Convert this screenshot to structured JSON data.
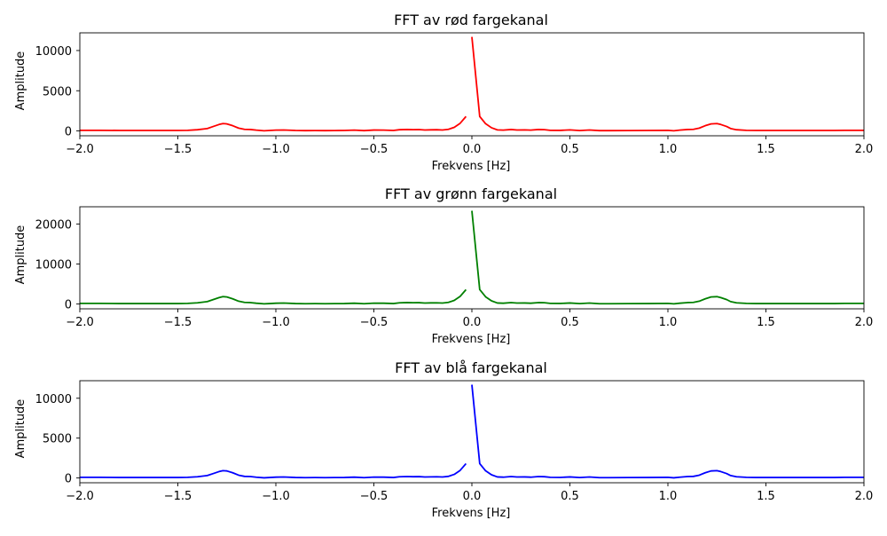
{
  "chart_data": [
    {
      "type": "line",
      "title": "FFT av rød fargekanal",
      "xlabel": "Frekvens [Hz]",
      "ylabel": "Amplitude",
      "xlim": [
        -2.0,
        2.0
      ],
      "ylim": [
        -600,
        12200
      ],
      "xticks": [
        "-2.0",
        "-1.5",
        "-1.0",
        "-0.5",
        "0.0",
        "0.5",
        "1.0",
        "1.5",
        "2.0"
      ],
      "xtick_values": [
        -2.0,
        -1.5,
        -1.0,
        -0.5,
        0.0,
        0.5,
        1.0,
        1.5,
        2.0
      ],
      "yticks": [
        "0",
        "5000",
        "10000"
      ],
      "ytick_values": [
        0,
        5000,
        10000
      ],
      "color": "#ff0000",
      "series": [
        {
          "segments": [
            {
              "x": [
                -2.0,
                -1.9,
                -1.8,
                -1.7,
                -1.6,
                -1.5,
                -1.45,
                -1.4,
                -1.35,
                -1.32,
                -1.29,
                -1.27,
                -1.25,
                -1.22,
                -1.19,
                -1.16,
                -1.13,
                -1.1,
                -1.06,
                -1.03,
                -1.0,
                -0.96,
                -0.9,
                -0.85,
                -0.8,
                -0.75,
                -0.7,
                -0.65,
                -0.6,
                -0.55,
                -0.5,
                -0.45,
                -0.4,
                -0.37,
                -0.33,
                -0.3,
                -0.27,
                -0.24,
                -0.21,
                -0.18,
                -0.15,
                -0.12,
                -0.09,
                -0.06,
                -0.03
              ],
              "y": [
                80,
                80,
                60,
                60,
                60,
                60,
                80,
                150,
                300,
                550,
                800,
                920,
                880,
                650,
                350,
                200,
                180,
                100,
                20,
                60,
                100,
                120,
                60,
                40,
                50,
                40,
                50,
                60,
                100,
                40,
                110,
                100,
                60,
                150,
                180,
                160,
                170,
                120,
                140,
                150,
                120,
                200,
                450,
                950,
                1800
              ]
            },
            {
              "x": [
                0.0,
                0.04,
                0.07,
                0.1,
                0.13,
                0.16,
                0.2,
                0.23,
                0.27,
                0.3,
                0.34,
                0.37,
                0.4,
                0.45,
                0.5,
                0.55,
                0.6,
                0.65,
                0.7,
                0.8,
                0.9,
                1.0,
                1.03,
                1.06,
                1.1,
                1.13,
                1.16,
                1.19,
                1.22,
                1.25,
                1.27,
                1.3,
                1.32,
                1.35,
                1.4,
                1.45,
                1.5,
                1.6,
                1.7,
                1.8,
                1.85,
                1.9,
                2.0
              ],
              "y": [
                11700,
                1800,
                900,
                400,
                130,
                100,
                180,
                120,
                130,
                100,
                180,
                160,
                80,
                70,
                130,
                50,
                120,
                40,
                40,
                50,
                60,
                80,
                20,
                100,
                180,
                200,
                350,
                650,
                880,
                920,
                800,
                550,
                300,
                150,
                80,
                60,
                60,
                60,
                60,
                60,
                60,
                80,
                80
              ]
            }
          ]
        }
      ]
    },
    {
      "type": "line",
      "title": "FFT av grønn fargekanal",
      "xlabel": "Frekvens [Hz]",
      "ylabel": "Amplitude",
      "xlim": [
        -2.0,
        2.0
      ],
      "ylim": [
        -1200,
        24300
      ],
      "xticks": [
        "-2.0",
        "-1.5",
        "-1.0",
        "-0.5",
        "0.0",
        "0.5",
        "1.0",
        "1.5",
        "2.0"
      ],
      "xtick_values": [
        -2.0,
        -1.5,
        -1.0,
        -0.5,
        0.0,
        0.5,
        1.0,
        1.5,
        2.0
      ],
      "yticks": [
        "0",
        "10000",
        "20000"
      ],
      "ytick_values": [
        0,
        10000,
        20000
      ],
      "color": "#008000",
      "series": [
        {
          "segments": [
            {
              "x": [
                -2.0,
                -1.9,
                -1.8,
                -1.7,
                -1.6,
                -1.5,
                -1.45,
                -1.4,
                -1.35,
                -1.32,
                -1.29,
                -1.27,
                -1.25,
                -1.22,
                -1.19,
                -1.16,
                -1.13,
                -1.1,
                -1.06,
                -1.03,
                -1.0,
                -0.96,
                -0.9,
                -0.85,
                -0.8,
                -0.75,
                -0.7,
                -0.65,
                -0.6,
                -0.55,
                -0.5,
                -0.45,
                -0.4,
                -0.37,
                -0.33,
                -0.3,
                -0.27,
                -0.24,
                -0.21,
                -0.18,
                -0.15,
                -0.12,
                -0.09,
                -0.06,
                -0.03
              ],
              "y": [
                160,
                160,
                120,
                120,
                120,
                120,
                160,
                300,
                600,
                1100,
                1600,
                1840,
                1760,
                1300,
                700,
                400,
                360,
                200,
                40,
                120,
                200,
                240,
                120,
                80,
                100,
                80,
                100,
                120,
                200,
                80,
                220,
                200,
                120,
                300,
                360,
                320,
                340,
                240,
                280,
                300,
                240,
                400,
                900,
                1900,
                3600
              ]
            },
            {
              "x": [
                0.0,
                0.04,
                0.07,
                0.1,
                0.13,
                0.16,
                0.2,
                0.23,
                0.27,
                0.3,
                0.34,
                0.37,
                0.4,
                0.45,
                0.5,
                0.55,
                0.6,
                0.65,
                0.7,
                0.8,
                0.9,
                1.0,
                1.03,
                1.06,
                1.1,
                1.13,
                1.16,
                1.19,
                1.22,
                1.25,
                1.27,
                1.3,
                1.32,
                1.35,
                1.4,
                1.45,
                1.5,
                1.6,
                1.7,
                1.8,
                1.85,
                1.9,
                2.0
              ],
              "y": [
                23300,
                3600,
                1800,
                800,
                260,
                200,
                360,
                240,
                260,
                200,
                360,
                320,
                160,
                140,
                260,
                100,
                240,
                80,
                80,
                100,
                120,
                160,
                40,
                200,
                360,
                400,
                700,
                1300,
                1760,
                1840,
                1600,
                1100,
                600,
                300,
                160,
                120,
                120,
                120,
                120,
                120,
                120,
                160,
                160
              ]
            }
          ]
        }
      ]
    },
    {
      "type": "line",
      "title": "FFT av blå fargekanal",
      "xlabel": "Frekvens [Hz]",
      "ylabel": "Amplitude",
      "xlim": [
        -2.0,
        2.0
      ],
      "ylim": [
        -600,
        12200
      ],
      "xticks": [
        "-2.0",
        "-1.5",
        "-1.0",
        "-0.5",
        "0.0",
        "0.5",
        "1.0",
        "1.5",
        "2.0"
      ],
      "xtick_values": [
        -2.0,
        -1.5,
        -1.0,
        -0.5,
        0.0,
        0.5,
        1.0,
        1.5,
        2.0
      ],
      "yticks": [
        "0",
        "5000",
        "10000"
      ],
      "ytick_values": [
        0,
        5000,
        10000
      ],
      "color": "#0000ff",
      "series": [
        {
          "segments": [
            {
              "x": [
                -2.0,
                -1.9,
                -1.8,
                -1.7,
                -1.6,
                -1.5,
                -1.45,
                -1.4,
                -1.35,
                -1.32,
                -1.29,
                -1.27,
                -1.25,
                -1.22,
                -1.19,
                -1.16,
                -1.13,
                -1.1,
                -1.06,
                -1.03,
                -1.0,
                -0.96,
                -0.9,
                -0.85,
                -0.8,
                -0.75,
                -0.7,
                -0.65,
                -0.6,
                -0.55,
                -0.5,
                -0.45,
                -0.4,
                -0.37,
                -0.33,
                -0.3,
                -0.27,
                -0.24,
                -0.21,
                -0.18,
                -0.15,
                -0.12,
                -0.09,
                -0.06,
                -0.03
              ],
              "y": [
                80,
                80,
                60,
                60,
                60,
                60,
                80,
                150,
                300,
                550,
                800,
                920,
                880,
                650,
                350,
                200,
                180,
                100,
                20,
                60,
                100,
                120,
                60,
                40,
                50,
                40,
                50,
                60,
                100,
                40,
                110,
                100,
                60,
                150,
                180,
                160,
                170,
                120,
                140,
                150,
                120,
                200,
                450,
                950,
                1800
              ]
            },
            {
              "x": [
                0.0,
                0.04,
                0.07,
                0.1,
                0.13,
                0.16,
                0.2,
                0.23,
                0.27,
                0.3,
                0.34,
                0.37,
                0.4,
                0.45,
                0.5,
                0.55,
                0.6,
                0.65,
                0.7,
                0.8,
                0.9,
                1.0,
                1.03,
                1.06,
                1.1,
                1.13,
                1.16,
                1.19,
                1.22,
                1.25,
                1.27,
                1.3,
                1.32,
                1.35,
                1.4,
                1.45,
                1.5,
                1.6,
                1.7,
                1.8,
                1.85,
                1.9,
                2.0
              ],
              "y": [
                11700,
                1800,
                900,
                400,
                130,
                100,
                180,
                120,
                130,
                100,
                180,
                160,
                80,
                70,
                130,
                50,
                120,
                40,
                40,
                50,
                60,
                80,
                20,
                100,
                180,
                200,
                350,
                650,
                880,
                920,
                800,
                550,
                300,
                150,
                80,
                60,
                60,
                60,
                60,
                60,
                60,
                80,
                80
              ]
            }
          ]
        }
      ]
    }
  ]
}
